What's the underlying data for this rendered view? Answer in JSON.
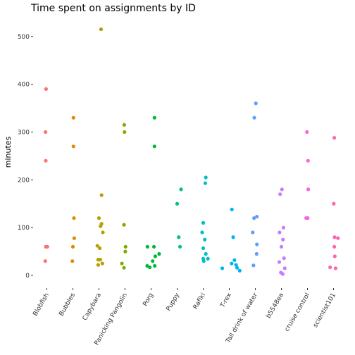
{
  "chart_data": {
    "type": "scatter",
    "title": "Time spent on assignments by ID",
    "xlabel": "",
    "ylabel": "minutes",
    "ylim": [
      -25,
      535
    ],
    "yticks": [
      0,
      100,
      200,
      300,
      400,
      500
    ],
    "grid": false,
    "categories": [
      "Blobfish",
      "Bubbles",
      "Capybara",
      "Panicking Pangolin",
      "Porg",
      "Puppy",
      "Rafiki",
      "T-rex",
      "Tall drink of water",
      "b5548ea",
      "cruise control",
      "scientist101"
    ],
    "colors": [
      "#F8766D",
      "#DE8C00",
      "#B79F00",
      "#7CAE00",
      "#00BA38",
      "#00C08B",
      "#00BFC4",
      "#00B4F0",
      "#619CFF",
      "#C77CFF",
      "#F564E3",
      "#FF64B0"
    ],
    "series": [
      {
        "category": "Blobfish",
        "points": [
          [
            -0.03,
            390
          ],
          [
            -0.05,
            300
          ],
          [
            -0.04,
            240
          ],
          [
            -0.04,
            60
          ],
          [
            0.02,
            60
          ],
          [
            -0.06,
            30
          ]
        ]
      },
      {
        "category": "Bubbles",
        "points": [
          [
            0.02,
            330
          ],
          [
            0.02,
            270
          ],
          [
            0.04,
            120
          ],
          [
            0.05,
            78
          ],
          [
            0.0,
            60
          ],
          [
            -0.02,
            30
          ]
        ]
      },
      {
        "category": "Capybara",
        "points": [
          [
            0.08,
            515
          ],
          [
            0.1,
            168
          ],
          [
            0.0,
            120
          ],
          [
            0.1,
            108
          ],
          [
            0.06,
            103
          ],
          [
            0.15,
            90
          ],
          [
            -0.06,
            62
          ],
          [
            0.03,
            57
          ],
          [
            -0.03,
            33
          ],
          [
            0.05,
            33
          ],
          [
            0.13,
            25
          ],
          [
            -0.03,
            22
          ]
        ]
      },
      {
        "category": "Panicking Pangolin",
        "points": [
          [
            -0.03,
            315
          ],
          [
            -0.02,
            300
          ],
          [
            -0.04,
            106
          ],
          [
            0.02,
            60
          ],
          [
            0.01,
            50
          ],
          [
            -0.12,
            25
          ],
          [
            -0.04,
            16
          ]
        ]
      },
      {
        "category": "Porg",
        "points": [
          [
            0.13,
            330
          ],
          [
            0.13,
            270
          ],
          [
            -0.14,
            60
          ],
          [
            0.11,
            60
          ],
          [
            0.31,
            45
          ],
          [
            0.16,
            40
          ],
          [
            0.06,
            30
          ],
          [
            -0.15,
            20
          ],
          [
            0.14,
            20
          ],
          [
            -0.05,
            17
          ]
        ]
      },
      {
        "category": "Puppy",
        "points": [
          [
            0.15,
            180
          ],
          [
            0.0,
            150
          ],
          [
            0.06,
            80
          ],
          [
            0.11,
            60
          ]
        ]
      },
      {
        "category": "Rafiki",
        "points": [
          [
            0.1,
            205
          ],
          [
            0.08,
            193
          ],
          [
            0.0,
            110
          ],
          [
            -0.04,
            90
          ],
          [
            0.06,
            75
          ],
          [
            0.0,
            57
          ],
          [
            0.1,
            45
          ],
          [
            0.18,
            35
          ],
          [
            0.0,
            35
          ],
          [
            0.02,
            30
          ]
        ]
      },
      {
        "category": "T-rex",
        "points": [
          [
            0.1,
            138
          ],
          [
            0.15,
            80
          ],
          [
            0.2,
            32
          ],
          [
            0.09,
            25
          ],
          [
            0.26,
            22
          ],
          [
            0.3,
            16
          ],
          [
            -0.27,
            15
          ],
          [
            0.4,
            10
          ]
        ]
      },
      {
        "category": "Tall drink of water",
        "points": [
          [
            0.02,
            360
          ],
          [
            -0.04,
            330
          ],
          [
            0.06,
            123
          ],
          [
            -0.05,
            120
          ],
          [
            -0.1,
            90
          ],
          [
            0.06,
            65
          ],
          [
            0.05,
            45
          ],
          [
            -0.07,
            21
          ]
        ]
      },
      {
        "category": "b5548ea",
        "points": [
          [
            0.02,
            180
          ],
          [
            -0.05,
            170
          ],
          [
            0.08,
            100
          ],
          [
            -0.07,
            90
          ],
          [
            0.06,
            75
          ],
          [
            0.0,
            60
          ],
          [
            0.1,
            36
          ],
          [
            -0.08,
            28
          ],
          [
            0.13,
            15
          ],
          [
            -0.02,
            6
          ],
          [
            0.05,
            3
          ]
        ]
      },
      {
        "category": "cruise control",
        "points": [
          [
            -0.02,
            300
          ],
          [
            0.02,
            240
          ],
          [
            0.03,
            180
          ],
          [
            -0.05,
            120
          ],
          [
            0.01,
            120
          ]
        ]
      },
      {
        "category": "scientist101",
        "points": [
          [
            0.03,
            288
          ],
          [
            0.01,
            150
          ],
          [
            0.04,
            80
          ],
          [
            0.17,
            78
          ],
          [
            0.03,
            60
          ],
          [
            0.05,
            40
          ],
          [
            -0.13,
            17
          ],
          [
            0.08,
            15
          ]
        ]
      }
    ]
  }
}
